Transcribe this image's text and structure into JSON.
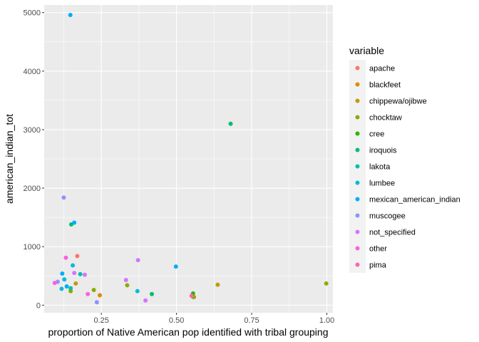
{
  "chart_data": {
    "type": "scatter",
    "title": "",
    "xlabel": "proportion of Native American pop identified with tribal grouping",
    "ylabel": "american_indian_tot",
    "xlim": [
      0.06,
      1.02
    ],
    "ylim": [
      -130,
      5130
    ],
    "x_ticks": [
      0.25,
      0.5,
      0.75,
      1.0
    ],
    "x_tick_labels": [
      "0.25",
      "0.50",
      "0.75",
      "1.00"
    ],
    "y_ticks": [
      0,
      1000,
      2000,
      3000,
      4000,
      5000
    ],
    "y_tick_labels": [
      "0",
      "1000",
      "2000",
      "3000",
      "4000",
      "5000"
    ],
    "grid": true,
    "legend": {
      "title": "variable",
      "position": "right"
    },
    "series": [
      {
        "name": "apache",
        "color": "#F8766D",
        "points": [
          [
            0.17,
            840
          ],
          [
            0.555,
            140
          ]
        ]
      },
      {
        "name": "blackfeet",
        "color": "#E18A00",
        "points": [
          [
            0.245,
            170
          ]
        ]
      },
      {
        "name": "chippewa/ojibwe",
        "color": "#BE9C00",
        "points": [
          [
            0.637,
            350
          ],
          [
            0.165,
            370
          ]
        ]
      },
      {
        "name": "chocktaw",
        "color": "#8CAB00",
        "points": [
          [
            0.225,
            260
          ],
          [
            0.998,
            370
          ],
          [
            0.336,
            340
          ],
          [
            0.558,
            140
          ],
          [
            0.148,
            240
          ]
        ]
      },
      {
        "name": "cree",
        "color": "#24B700",
        "points": [
          [
            0.555,
            200
          ]
        ]
      },
      {
        "name": "iroquois",
        "color": "#00BE70",
        "points": [
          [
            0.68,
            3100
          ],
          [
            0.15,
            1380
          ],
          [
            0.418,
            190
          ]
        ]
      },
      {
        "name": "lakota",
        "color": "#00C1AB",
        "points": [
          [
            0.148,
            290
          ],
          [
            0.18,
            530
          ]
        ]
      },
      {
        "name": "lumbee",
        "color": "#00BBDA",
        "points": [
          [
            0.37,
            240
          ],
          [
            0.155,
            680
          ],
          [
            0.127,
            440
          ],
          [
            0.118,
            280
          ]
        ]
      },
      {
        "name": "mexican_american_indian",
        "color": "#00ACFC",
        "points": [
          [
            0.147,
            4960
          ],
          [
            0.16,
            1410
          ],
          [
            0.498,
            660
          ],
          [
            0.135,
            320
          ],
          [
            0.12,
            540
          ]
        ]
      },
      {
        "name": "muscogee",
        "color": "#8B93FF",
        "points": [
          [
            0.125,
            1840
          ],
          [
            0.105,
            400
          ],
          [
            0.235,
            50
          ]
        ]
      },
      {
        "name": "not_specified",
        "color": "#D575FE",
        "points": [
          [
            0.372,
            770
          ],
          [
            0.332,
            430
          ],
          [
            0.16,
            550
          ],
          [
            0.397,
            80
          ],
          [
            0.195,
            520
          ]
        ]
      },
      {
        "name": "other",
        "color": "#F962DD",
        "points": [
          [
            0.132,
            810
          ],
          [
            0.095,
            380
          ],
          [
            0.205,
            190
          ]
        ]
      },
      {
        "name": "pima",
        "color": "#FF65AC",
        "points": [
          [
            0.55,
            160
          ]
        ]
      }
    ]
  }
}
